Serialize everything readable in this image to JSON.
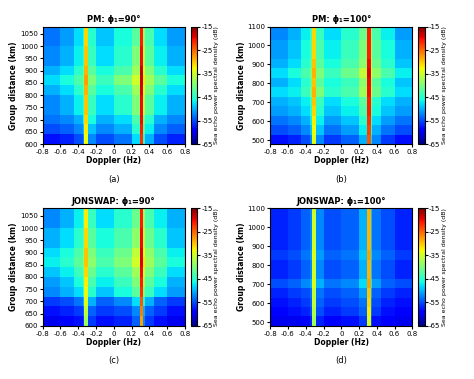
{
  "chart_data": [
    {
      "type": "heatmap",
      "title": "PM: ϕ₁=90°",
      "x_label": "Doppler (Hz)",
      "y_label": "Group distance (km)",
      "panel_label": "(a)",
      "xlim": [
        -0.8,
        0.8
      ],
      "xticks": [
        -0.8,
        -0.6,
        -0.4,
        -0.2,
        0,
        0.2,
        0.4,
        0.6,
        0.8
      ],
      "ylim": [
        600,
        1080
      ],
      "yticks": [
        600,
        650,
        700,
        750,
        800,
        850,
        900,
        950,
        1000,
        1050
      ],
      "x_edges": [
        -0.8,
        -0.6,
        -0.45,
        -0.35,
        -0.33,
        -0.29,
        -0.2,
        0,
        0.2,
        0.29,
        0.33,
        0.35,
        0.45,
        0.6,
        0.8
      ],
      "y_edges": [
        600,
        640,
        680,
        720,
        760,
        800,
        840,
        880,
        920,
        960,
        1000,
        1040,
        1080
      ],
      "cells": [
        [
          -58,
          -57,
          -55,
          -52,
          -33,
          -52,
          -55,
          -53,
          -48,
          -22,
          -45,
          -50,
          -55,
          -57
        ],
        [
          -55,
          -54,
          -52,
          -49,
          -32,
          -49,
          -52,
          -50,
          -45,
          -21,
          -42,
          -47,
          -52,
          -54
        ],
        [
          -53,
          -52,
          -50,
          -46,
          -31,
          -46,
          -50,
          -48,
          -43,
          -20,
          -40,
          -45,
          -50,
          -52
        ],
        [
          -52,
          -50,
          -47,
          -44,
          -30,
          -44,
          -48,
          -45,
          -40,
          -20,
          -36,
          -42,
          -47,
          -50
        ],
        [
          -52,
          -50,
          -47,
          -44,
          -30,
          -44,
          -48,
          -45,
          -40,
          -20,
          -36,
          -42,
          -47,
          -50
        ],
        [
          -50,
          -48,
          -45,
          -42,
          -29,
          -42,
          -46,
          -43,
          -38,
          -19,
          -34,
          -40,
          -45,
          -48
        ],
        [
          -48,
          -46,
          -43,
          -40,
          -28,
          -40,
          -44,
          -40,
          -35,
          -18,
          -32,
          -38,
          -42,
          -46
        ],
        [
          -50,
          -48,
          -45,
          -42,
          -29,
          -42,
          -46,
          -43,
          -38,
          -18,
          -34,
          -40,
          -45,
          -48
        ],
        [
          -52,
          -50,
          -47,
          -44,
          -30,
          -44,
          -48,
          -45,
          -40,
          -20,
          -36,
          -42,
          -47,
          -50
        ],
        [
          -52,
          -50,
          -47,
          -44,
          -30,
          -44,
          -48,
          -45,
          -40,
          -20,
          -36,
          -42,
          -47,
          -50
        ],
        [
          -53,
          -51,
          -48,
          -45,
          -31,
          -45,
          -49,
          -46,
          -42,
          -21,
          -38,
          -43,
          -48,
          -51
        ],
        [
          -53,
          -51,
          -48,
          -45,
          -31,
          -45,
          -49,
          -46,
          -42,
          -21,
          -38,
          -43,
          -48,
          -51
        ]
      ],
      "colorbar_label": "Sea echo power spectral density (dB)",
      "colorbar_range": [
        -65,
        -15
      ],
      "colorbar_ticks": [
        -65,
        -55,
        -45,
        -35,
        -25,
        -15
      ]
    },
    {
      "type": "heatmap",
      "title": "PM: ϕ₁=100°",
      "x_label": "Doppler (Hz)",
      "y_label": "Group distance (km)",
      "panel_label": "(b)",
      "xlim": [
        -0.8,
        0.8
      ],
      "xticks": [
        -0.8,
        -0.6,
        -0.4,
        -0.2,
        0,
        0.2,
        0.4,
        0.6,
        0.8
      ],
      "ylim": [
        480,
        1100
      ],
      "yticks": [
        500,
        600,
        700,
        800,
        900,
        1000,
        1100
      ],
      "x_edges": [
        -0.8,
        -0.6,
        -0.45,
        -0.35,
        -0.33,
        -0.29,
        -0.2,
        0,
        0.2,
        0.29,
        0.33,
        0.35,
        0.45,
        0.6,
        0.8
      ],
      "y_edges": [
        480,
        530,
        580,
        630,
        680,
        730,
        780,
        830,
        880,
        930,
        980,
        1030,
        1100
      ],
      "cells": [
        [
          -58,
          -57,
          -55,
          -52,
          -34,
          -52,
          -56,
          -54,
          -50,
          -24,
          -48,
          -52,
          -56,
          -58
        ],
        [
          -55,
          -54,
          -52,
          -49,
          -33,
          -49,
          -53,
          -51,
          -47,
          -23,
          -45,
          -50,
          -53,
          -55
        ],
        [
          -53,
          -52,
          -50,
          -47,
          -32,
          -47,
          -51,
          -49,
          -45,
          -22,
          -43,
          -48,
          -51,
          -53
        ],
        [
          -51,
          -50,
          -48,
          -45,
          -31,
          -45,
          -49,
          -47,
          -43,
          -21,
          -41,
          -46,
          -49,
          -51
        ],
        [
          -50,
          -49,
          -47,
          -44,
          -30,
          -44,
          -48,
          -46,
          -42,
          -21,
          -40,
          -45,
          -48,
          -50
        ],
        [
          -48,
          -47,
          -44,
          -40,
          -29,
          -40,
          -45,
          -43,
          -38,
          -20,
          -35,
          -41,
          -45,
          -48
        ],
        [
          -50,
          -48,
          -45,
          -42,
          -30,
          -42,
          -46,
          -44,
          -39,
          -20,
          -37,
          -42,
          -46,
          -49
        ],
        [
          -48,
          -46,
          -43,
          -40,
          -29,
          -40,
          -44,
          -41,
          -36,
          -19,
          -34,
          -39,
          -43,
          -47
        ],
        [
          -50,
          -48,
          -45,
          -42,
          -30,
          -42,
          -46,
          -43,
          -39,
          -20,
          -36,
          -41,
          -45,
          -49
        ],
        [
          -51,
          -49,
          -46,
          -43,
          -31,
          -43,
          -47,
          -44,
          -40,
          -21,
          -37,
          -42,
          -46,
          -50
        ],
        [
          -51,
          -49,
          -46,
          -43,
          -31,
          -43,
          -47,
          -44,
          -40,
          -21,
          -37,
          -42,
          -46,
          -50
        ],
        [
          -52,
          -50,
          -47,
          -44,
          -31,
          -44,
          -48,
          -45,
          -41,
          -21,
          -38,
          -43,
          -47,
          -51
        ]
      ],
      "colorbar_label": "Sea echo power spectral density (dB)",
      "colorbar_range": [
        -65,
        -15
      ],
      "colorbar_ticks": [
        -65,
        -55,
        -45,
        -35,
        -25,
        -15
      ]
    },
    {
      "type": "heatmap",
      "title": "JONSWAP: ϕ₁=90°",
      "x_label": "Doppler (Hz)",
      "y_label": "Group distance (km)",
      "panel_label": "(c)",
      "xlim": [
        -0.8,
        0.8
      ],
      "xticks": [
        -0.8,
        -0.6,
        -0.4,
        -0.2,
        0,
        0.2,
        0.4,
        0.6,
        0.8
      ],
      "ylim": [
        600,
        1080
      ],
      "yticks": [
        600,
        650,
        700,
        750,
        800,
        850,
        900,
        950,
        1000,
        1050
      ],
      "x_edges": [
        -0.8,
        -0.6,
        -0.45,
        -0.35,
        -0.33,
        -0.29,
        -0.2,
        0,
        0.2,
        0.29,
        0.33,
        0.35,
        0.45,
        0.6,
        0.8
      ],
      "y_edges": [
        600,
        640,
        680,
        720,
        760,
        800,
        840,
        880,
        920,
        960,
        1000,
        1040,
        1080
      ],
      "cells": [
        [
          -60,
          -59,
          -58,
          -56,
          -38,
          -56,
          -58,
          -57,
          -54,
          -28,
          -52,
          -56,
          -58,
          -60
        ],
        [
          -58,
          -57,
          -56,
          -54,
          -36,
          -54,
          -56,
          -55,
          -52,
          -26,
          -50,
          -54,
          -56,
          -58
        ],
        [
          -56,
          -55,
          -53,
          -50,
          -34,
          -50,
          -54,
          -52,
          -48,
          -24,
          -46,
          -50,
          -54,
          -56
        ],
        [
          -52,
          -50,
          -48,
          -45,
          -33,
          -45,
          -49,
          -46,
          -42,
          -22,
          -40,
          -44,
          -48,
          -51
        ],
        [
          -51,
          -49,
          -46,
          -43,
          -32,
          -43,
          -47,
          -44,
          -40,
          -21,
          -37,
          -42,
          -46,
          -50
        ],
        [
          -49,
          -47,
          -44,
          -41,
          -31,
          -41,
          -45,
          -42,
          -38,
          -20,
          -35,
          -40,
          -44,
          -48
        ],
        [
          -47,
          -45,
          -42,
          -39,
          -30,
          -39,
          -43,
          -40,
          -35,
          -19,
          -32,
          -38,
          -42,
          -46
        ],
        [
          -48,
          -46,
          -43,
          -40,
          -30,
          -40,
          -44,
          -41,
          -36,
          -19,
          -33,
          -39,
          -43,
          -47
        ],
        [
          -50,
          -48,
          -45,
          -42,
          -31,
          -42,
          -46,
          -43,
          -39,
          -20,
          -36,
          -41,
          -45,
          -49
        ],
        [
          -50,
          -48,
          -45,
          -42,
          -31,
          -42,
          -46,
          -43,
          -39,
          -20,
          -36,
          -41,
          -45,
          -49
        ],
        [
          -52,
          -50,
          -47,
          -44,
          -32,
          -44,
          -48,
          -45,
          -41,
          -21,
          -38,
          -43,
          -47,
          -50
        ],
        [
          -52,
          -50,
          -47,
          -44,
          -32,
          -44,
          -48,
          -45,
          -41,
          -21,
          -38,
          -43,
          -47,
          -50
        ]
      ],
      "colorbar_label": "Sea echo power spectral density (dB)",
      "colorbar_range": [
        -65,
        -15
      ],
      "colorbar_ticks": [
        -65,
        -55,
        -45,
        -35,
        -25,
        -15
      ]
    },
    {
      "type": "heatmap",
      "title": "JONSWAP: ϕ₁=100°",
      "x_label": "Doppler (Hz)",
      "y_label": "Group distance (km)",
      "panel_label": "(d)",
      "xlim": [
        -0.8,
        0.8
      ],
      "xticks": [
        -0.8,
        -0.6,
        -0.4,
        -0.2,
        0,
        0.2,
        0.4,
        0.6,
        0.8
      ],
      "ylim": [
        480,
        1100
      ],
      "yticks": [
        500,
        600,
        700,
        800,
        900,
        1000,
        1100
      ],
      "x_edges": [
        -0.8,
        -0.6,
        -0.45,
        -0.35,
        -0.33,
        -0.29,
        -0.2,
        0,
        0.2,
        0.29,
        0.33,
        0.35,
        0.45,
        0.6,
        0.8
      ],
      "y_edges": [
        480,
        530,
        580,
        630,
        680,
        730,
        780,
        830,
        880,
        930,
        980,
        1030,
        1100
      ],
      "cells": [
        [
          -60,
          -60,
          -59,
          -57,
          -38,
          -57,
          -59,
          -58,
          -56,
          -34,
          -55,
          -58,
          -59,
          -60
        ],
        [
          -59,
          -58,
          -57,
          -55,
          -37,
          -55,
          -57,
          -56,
          -54,
          -32,
          -53,
          -56,
          -58,
          -59
        ],
        [
          -58,
          -57,
          -56,
          -54,
          -36,
          -54,
          -56,
          -55,
          -53,
          -31,
          -52,
          -55,
          -57,
          -58
        ],
        [
          -57,
          -56,
          -55,
          -53,
          -36,
          -53,
          -55,
          -54,
          -51,
          -30,
          -50,
          -54,
          -56,
          -57
        ],
        [
          -55,
          -54,
          -52,
          -50,
          -34,
          -50,
          -53,
          -52,
          -48,
          -28,
          -47,
          -51,
          -54,
          -55
        ],
        [
          -57,
          -56,
          -54,
          -52,
          -35,
          -52,
          -55,
          -54,
          -50,
          -29,
          -49,
          -53,
          -55,
          -57
        ],
        [
          -57,
          -56,
          -54,
          -52,
          -35,
          -52,
          -55,
          -54,
          -50,
          -29,
          -49,
          -53,
          -55,
          -57
        ],
        [
          -56,
          -55,
          -53,
          -51,
          -34,
          -51,
          -54,
          -53,
          -49,
          -28,
          -48,
          -52,
          -54,
          -56
        ],
        [
          -57,
          -56,
          -54,
          -52,
          -35,
          -52,
          -55,
          -54,
          -50,
          -29,
          -49,
          -53,
          -55,
          -57
        ],
        [
          -57,
          -56,
          -54,
          -52,
          -35,
          -52,
          -55,
          -54,
          -50,
          -29,
          -49,
          -53,
          -55,
          -57
        ],
        [
          -57,
          -56,
          -54,
          -52,
          -35,
          -52,
          -55,
          -54,
          -50,
          -29,
          -49,
          -53,
          -55,
          -57
        ],
        [
          -57,
          -56,
          -54,
          -52,
          -35,
          -52,
          -55,
          -54,
          -50,
          -29,
          -49,
          -53,
          -55,
          -57
        ]
      ],
      "colorbar_label": "Sea echo power spectral density (dB)",
      "colorbar_range": [
        -65,
        -15
      ],
      "colorbar_ticks": [
        -65,
        -55,
        -45,
        -35,
        -25,
        -15
      ]
    }
  ]
}
